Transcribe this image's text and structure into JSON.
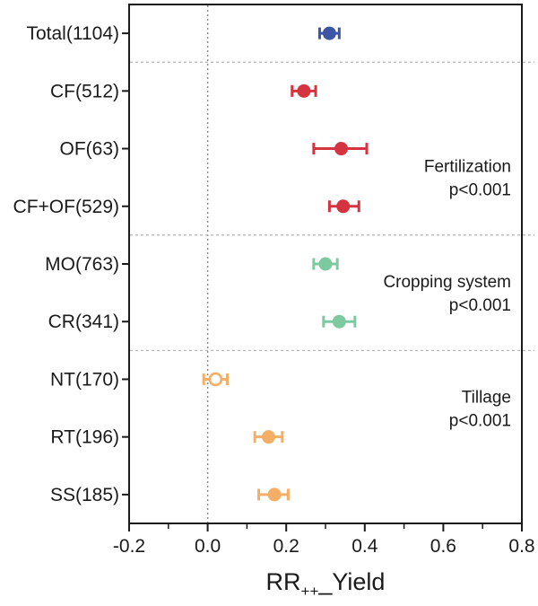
{
  "colors": {
    "total": "#3C55A4",
    "fertilization": "#D5333F",
    "cropping_system": "#7DC9A0",
    "tillage": "#F5AE65",
    "axis": "#1a1a1a",
    "separator": "#b3b3b3",
    "zero_line": "#8a8a8a",
    "background": "#ffffff"
  },
  "chart_data": {
    "type": "scatter",
    "subtype": "forest-plot-with-ci",
    "title": "",
    "xlabel": "RR++_Yield",
    "xlabel_parts": {
      "prefix": "RR",
      "subscript": "++",
      "suffix": "_Yield"
    },
    "ylabel": "",
    "xlim": [
      -0.2,
      0.8
    ],
    "grid": false,
    "zero_reference_line": 0.0,
    "x_major_ticks": [
      {
        "label": "-0.2",
        "value": -0.2
      },
      {
        "label": "0.0",
        "value": 0.0
      },
      {
        "label": "0.2",
        "value": 0.2
      },
      {
        "label": "0.4",
        "value": 0.4
      },
      {
        "label": "0.6",
        "value": 0.6
      },
      {
        "label": "0.8",
        "value": 0.8
      }
    ],
    "x_minor_step": 0.1,
    "rows": [
      {
        "label": "Total(1104)",
        "value": 0.31,
        "ci_low": 0.285,
        "ci_high": 0.335,
        "group": "total",
        "filled": true
      },
      {
        "label": "CF(512)",
        "value": 0.245,
        "ci_low": 0.215,
        "ci_high": 0.275,
        "group": "fertilization",
        "filled": true
      },
      {
        "label": "OF(63)",
        "value": 0.34,
        "ci_low": 0.27,
        "ci_high": 0.405,
        "group": "fertilization",
        "filled": true
      },
      {
        "label": "CF+OF(529)",
        "value": 0.345,
        "ci_low": 0.31,
        "ci_high": 0.385,
        "group": "fertilization",
        "filled": true
      },
      {
        "label": "MO(763)",
        "value": 0.3,
        "ci_low": 0.27,
        "ci_high": 0.33,
        "group": "cropping_system",
        "filled": true
      },
      {
        "label": "CR(341)",
        "value": 0.335,
        "ci_low": 0.295,
        "ci_high": 0.375,
        "group": "cropping_system",
        "filled": true
      },
      {
        "label": "NT(170)",
        "value": 0.02,
        "ci_low": -0.01,
        "ci_high": 0.05,
        "group": "tillage",
        "filled": false
      },
      {
        "label": "RT(196)",
        "value": 0.155,
        "ci_low": 0.12,
        "ci_high": 0.19,
        "group": "tillage",
        "filled": true
      },
      {
        "label": "SS(185)",
        "value": 0.17,
        "ci_low": 0.13,
        "ci_high": 0.205,
        "group": "tillage",
        "filled": true
      }
    ],
    "separators_after_rows": [
      0,
      3,
      5
    ],
    "annotations": [
      {
        "lines": [
          "Fertilization",
          "p<0.001"
        ],
        "between_rows": [
          2,
          3
        ]
      },
      {
        "lines": [
          "Cropping system",
          "p<0.001"
        ],
        "between_rows": [
          4,
          5
        ]
      },
      {
        "lines": [
          "Tillage",
          "p<0.001"
        ],
        "between_rows": [
          6,
          7
        ]
      }
    ],
    "legend": null
  }
}
